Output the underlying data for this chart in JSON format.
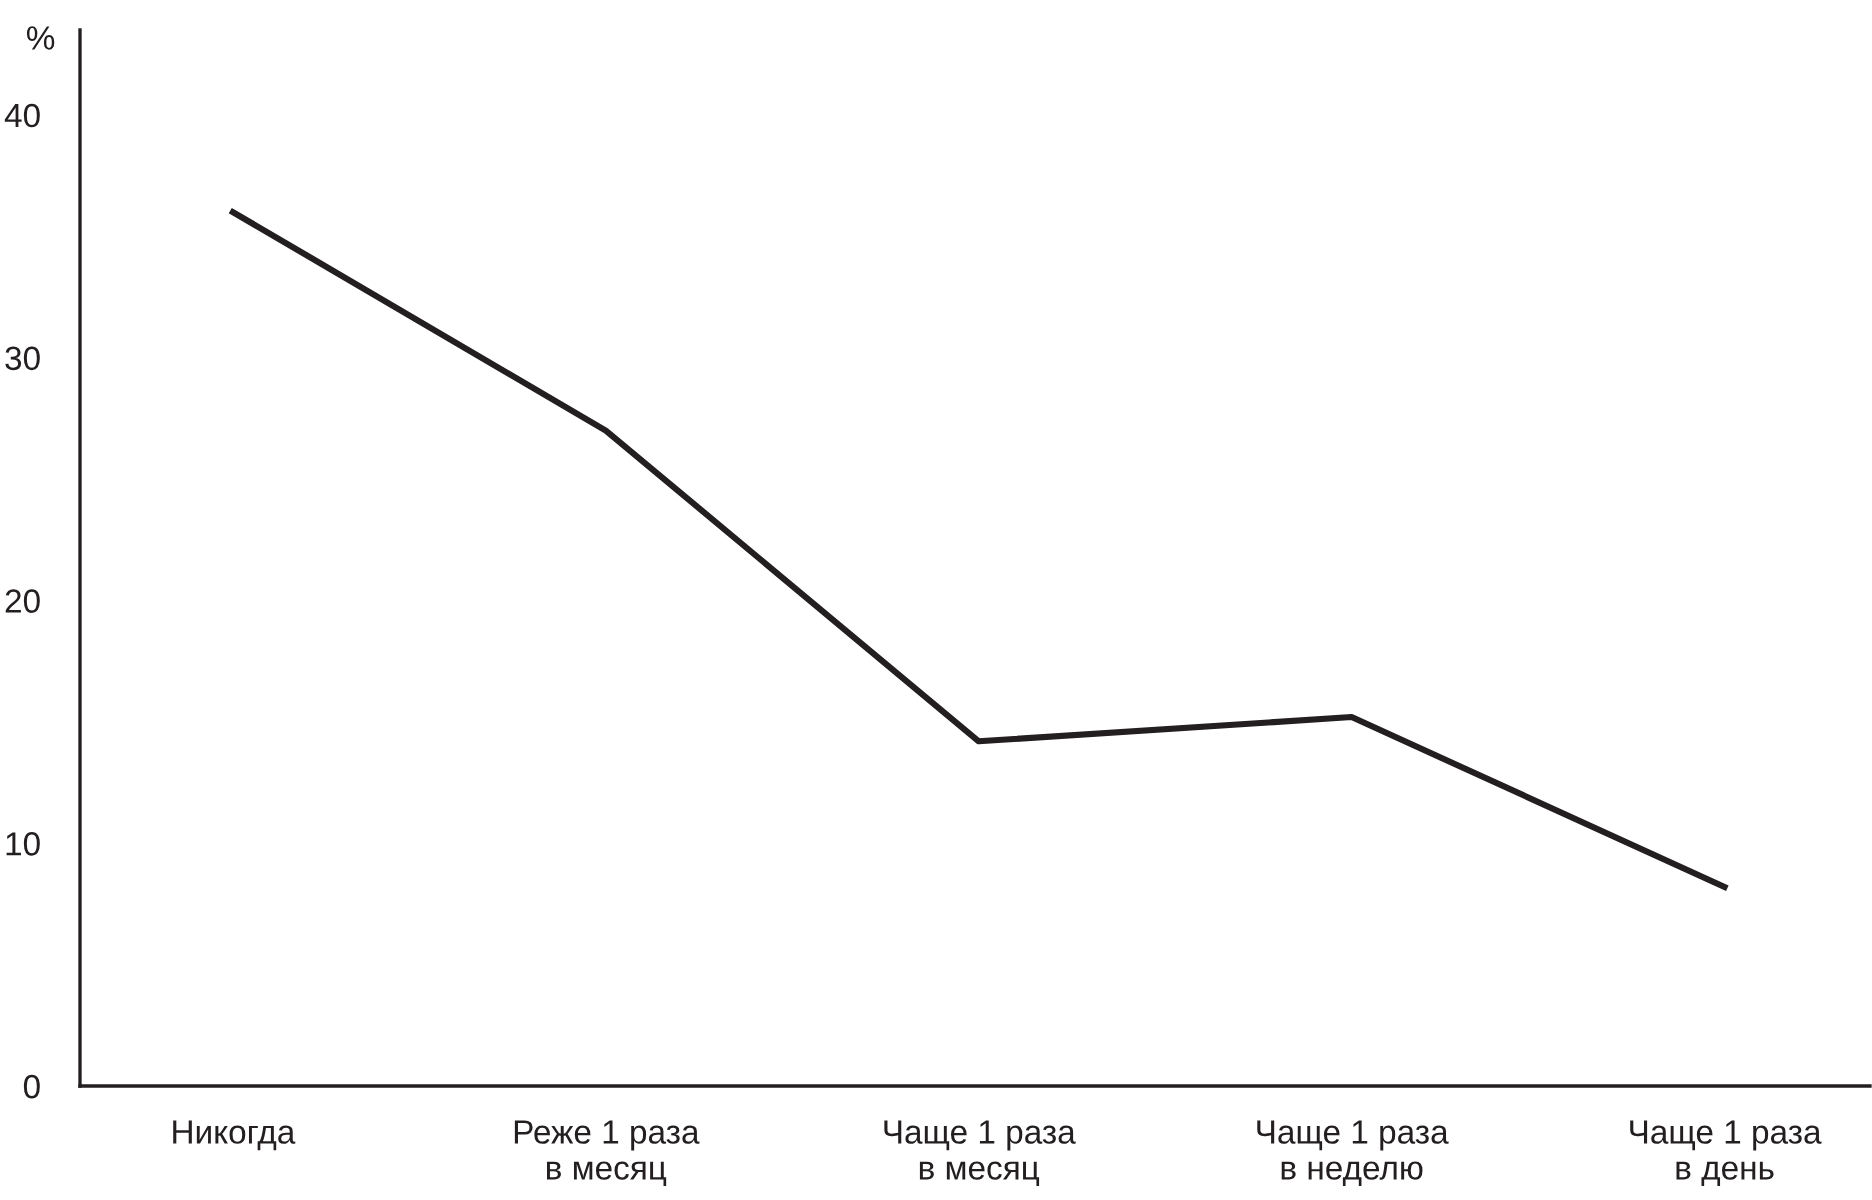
{
  "chart_data": {
    "type": "line",
    "ylabel": "%",
    "categories": [
      "Никогда",
      "Реже 1 раза\nв месяц",
      "Чаще 1 раза\nв месяц",
      "Чаще 1 раза\nв неделю",
      "Чаще 1 раза\nв день"
    ],
    "series": [
      {
        "color": "#231f20",
        "values": [
          36,
          27,
          14.2,
          15.2,
          8.2
        ]
      }
    ],
    "ylim": [
      0,
      43.5
    ],
    "yticks": [
      0,
      10,
      20,
      30,
      40
    ],
    "grid": false,
    "legend": false,
    "marker": "none",
    "line_style": "solid"
  }
}
